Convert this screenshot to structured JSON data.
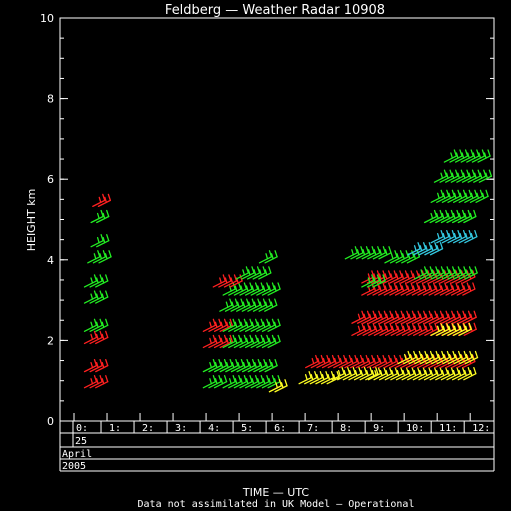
{
  "chart_data": {
    "type": "scatter",
    "title": "Feldberg — Weather Radar 10908",
    "xlabel": "TIME — UTC",
    "ylabel": "HEIGHT km",
    "footnote": "Data not assimilated in UK Model — Operational",
    "date_rows": [
      "25",
      "April",
      "2005"
    ],
    "xlim": [
      0,
      12.6
    ],
    "ylim": [
      0,
      10
    ],
    "x_ticks": [
      {
        "value": 0,
        "label": "0:"
      },
      {
        "value": 1,
        "label": "1:"
      },
      {
        "value": 2,
        "label": "2:"
      },
      {
        "value": 3,
        "label": "3:"
      },
      {
        "value": 4,
        "label": "4:"
      },
      {
        "value": 5,
        "label": "5:"
      },
      {
        "value": 6,
        "label": "6:"
      },
      {
        "value": 7,
        "label": "7:"
      },
      {
        "value": 8,
        "label": "8:"
      },
      {
        "value": 9,
        "label": "9:"
      },
      {
        "value": 10,
        "label": "10:"
      },
      {
        "value": 11,
        "label": "11:"
      },
      {
        "value": 12,
        "label": "12:"
      }
    ],
    "y_ticks": [
      {
        "value": 0,
        "label": "0"
      },
      {
        "value": 2,
        "label": "2"
      },
      {
        "value": 4,
        "label": "4"
      },
      {
        "value": 6,
        "label": "6"
      },
      {
        "value": 8,
        "label": "8"
      },
      {
        "value": 10,
        "label": "10"
      }
    ],
    "colors": {
      "red": "#ff2020",
      "green": "#22ee22",
      "yellow": "#ffff22",
      "cyan": "#33c8e0",
      "axis": "#ffffff",
      "background": "#000000"
    },
    "wind_barbs": [
      {
        "x": [
          0.5,
          1.0
        ],
        "y": 0.9,
        "color": "red"
      },
      {
        "x": [
          0.5,
          1.0
        ],
        "y": 1.3,
        "color": "red"
      },
      {
        "x": [
          0.5,
          1.0
        ],
        "y": 2.0,
        "color": "red"
      },
      {
        "x": [
          0.5,
          1.0
        ],
        "y": 2.3,
        "color": "green"
      },
      {
        "x": [
          0.5,
          1.0
        ],
        "y": 3.0,
        "color": "green"
      },
      {
        "x": [
          0.5,
          1.0
        ],
        "y": 3.4,
        "color": "green"
      },
      {
        "x": [
          0.6,
          1.0
        ],
        "y": 4.0,
        "color": "green"
      },
      {
        "x": [
          0.7,
          1.0
        ],
        "y": 4.4,
        "color": "green"
      },
      {
        "x": [
          0.7,
          1.0
        ],
        "y": 5.0,
        "color": "green"
      },
      {
        "x": [
          0.75,
          1.0
        ],
        "y": 5.4,
        "color": "red"
      },
      {
        "x": [
          4.1,
          4.6
        ],
        "y": 0.9,
        "color": "green"
      },
      {
        "x": [
          4.7,
          6.1
        ],
        "y": 0.9,
        "color": "green"
      },
      {
        "x": [
          6.1,
          6.3
        ],
        "y": 0.8,
        "color": "yellow"
      },
      {
        "x": [
          4.1,
          6.1
        ],
        "y": 1.3,
        "color": "green"
      },
      {
        "x": [
          4.1,
          4.7
        ],
        "y": 1.9,
        "color": "red"
      },
      {
        "x": [
          4.7,
          6.1
        ],
        "y": 1.9,
        "color": "green"
      },
      {
        "x": [
          4.1,
          4.7
        ],
        "y": 2.3,
        "color": "red"
      },
      {
        "x": [
          4.7,
          6.1
        ],
        "y": 2.3,
        "color": "green"
      },
      {
        "x": [
          4.6,
          6.1
        ],
        "y": 2.8,
        "color": "green"
      },
      {
        "x": [
          4.7,
          6.1
        ],
        "y": 3.2,
        "color": "green"
      },
      {
        "x": [
          4.4,
          5.0
        ],
        "y": 3.4,
        "color": "red"
      },
      {
        "x": [
          5.1,
          5.9
        ],
        "y": 3.6,
        "color": "green"
      },
      {
        "x": [
          5.8,
          6.0
        ],
        "y": 4.0,
        "color": "green"
      },
      {
        "x": [
          7.0,
          8.0
        ],
        "y": 1.0,
        "color": "yellow"
      },
      {
        "x": [
          8.0,
          9.1
        ],
        "y": 1.1,
        "color": "yellow"
      },
      {
        "x": [
          9.1,
          12.1
        ],
        "y": 1.1,
        "color": "yellow"
      },
      {
        "x": [
          7.2,
          12.1
        ],
        "y": 1.4,
        "color": "red"
      },
      {
        "x": [
          10.0,
          12.1
        ],
        "y": 1.5,
        "color": "yellow"
      },
      {
        "x": [
          8.6,
          12.1
        ],
        "y": 2.2,
        "color": "red"
      },
      {
        "x": [
          11.0,
          12.0
        ],
        "y": 2.2,
        "color": "yellow"
      },
      {
        "x": [
          8.6,
          12.1
        ],
        "y": 2.5,
        "color": "red"
      },
      {
        "x": [
          8.9,
          12.1
        ],
        "y": 3.2,
        "color": "red"
      },
      {
        "x": [
          8.9,
          12.1
        ],
        "y": 3.5,
        "color": "red"
      },
      {
        "x": [
          8.9,
          9.4
        ],
        "y": 3.4,
        "color": "green"
      },
      {
        "x": [
          10.5,
          12.1
        ],
        "y": 3.6,
        "color": "green"
      },
      {
        "x": [
          9.6,
          10.3
        ],
        "y": 4.0,
        "color": "green"
      },
      {
        "x": [
          8.4,
          9.5
        ],
        "y": 4.1,
        "color": "green"
      },
      {
        "x": [
          10.3,
          11.1
        ],
        "y": 4.2,
        "color": "cyan"
      },
      {
        "x": [
          11.0,
          12.1
        ],
        "y": 4.5,
        "color": "cyan"
      },
      {
        "x": [
          10.8,
          12.1
        ],
        "y": 5.0,
        "color": "green"
      },
      {
        "x": [
          11.0,
          12.4
        ],
        "y": 5.5,
        "color": "green"
      },
      {
        "x": [
          11.1,
          12.5
        ],
        "y": 6.0,
        "color": "green"
      },
      {
        "x": [
          11.4,
          12.5
        ],
        "y": 6.5,
        "color": "green"
      }
    ]
  }
}
